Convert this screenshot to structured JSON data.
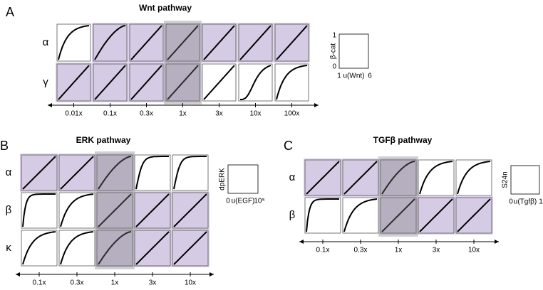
{
  "panels": [
    {
      "letter": "A",
      "title": "Wnt pathway",
      "rows": [
        "α",
        "γ"
      ],
      "columns": [
        "0.01x",
        "0.1x",
        "0.3x",
        "1x",
        "3x",
        "10x",
        "100x"
      ],
      "legend": {
        "ylabel": "β-cat",
        "ytop": "1",
        "ybottom": "0",
        "xleft": "1",
        "xlabel": "u(Wnt)",
        "xright": "6"
      }
    },
    {
      "letter": "B",
      "title": "ERK pathway",
      "rows": [
        "α",
        "β",
        "κ"
      ],
      "columns": [
        "0.1x",
        "0.3x",
        "1x",
        "3x",
        "10x"
      ],
      "legend": {
        "ylabel": "dpERK",
        "xleft": "0",
        "xlabel": "u(EGF)",
        "xright": "10⁵"
      }
    },
    {
      "letter": "C",
      "title": "TGFβ pathway",
      "rows": [
        "α",
        "β"
      ],
      "columns": [
        "0.1x",
        "0.3x",
        "1x",
        "3x",
        "10x"
      ],
      "legend": {
        "ylabel": "S24n",
        "xleft": "0",
        "xlabel": "u(Tgfβ)",
        "xright": "1"
      }
    }
  ]
}
